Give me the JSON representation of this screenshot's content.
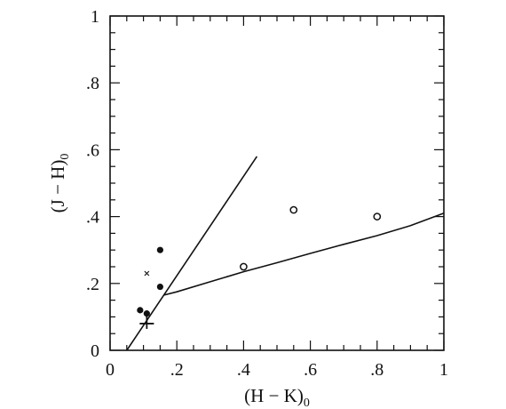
{
  "chart_data": {
    "type": "scatter",
    "xlabel": "(H − K)",
    "xlabel_sub": "0",
    "ylabel": "(J − H)",
    "ylabel_sub": "0",
    "xlim": [
      0,
      1
    ],
    "ylim": [
      0,
      1
    ],
    "x_tick_labels": [
      "0",
      ".2",
      ".4",
      ".6",
      ".8",
      "1"
    ],
    "x_tick_values": [
      0,
      0.2,
      0.4,
      0.6,
      0.8,
      1
    ],
    "y_tick_labels": [
      "0",
      ".2",
      ".4",
      ".6",
      ".8",
      "1"
    ],
    "y_tick_values": [
      0,
      0.2,
      0.4,
      0.6,
      0.8,
      1
    ],
    "minor_tick_step": 0.05,
    "grid": false,
    "legend": "none",
    "series": [
      {
        "marker": "filled-circle",
        "points": [
          [
            0.09,
            0.12
          ],
          [
            0.11,
            0.11
          ],
          [
            0.15,
            0.3
          ],
          [
            0.15,
            0.19
          ]
        ]
      },
      {
        "marker": "open-circle",
        "points": [
          [
            0.4,
            0.25
          ],
          [
            0.55,
            0.42
          ],
          [
            0.8,
            0.4
          ]
        ]
      },
      {
        "marker": "cross",
        "points": [
          [
            0.11,
            0.23
          ]
        ]
      },
      {
        "marker": "plus",
        "points": [
          [
            0.11,
            0.08
          ]
        ]
      }
    ],
    "lines": [
      {
        "style": "solid",
        "points": [
          [
            0.05,
            0.0
          ],
          [
            0.44,
            0.58
          ]
        ]
      },
      {
        "style": "solid",
        "points": [
          [
            0.16,
            0.165
          ],
          [
            0.2,
            0.175
          ],
          [
            0.3,
            0.205
          ],
          [
            0.4,
            0.235
          ],
          [
            0.5,
            0.262
          ],
          [
            0.6,
            0.29
          ],
          [
            0.7,
            0.317
          ],
          [
            0.8,
            0.343
          ],
          [
            0.9,
            0.373
          ],
          [
            1.0,
            0.41
          ]
        ]
      }
    ]
  }
}
